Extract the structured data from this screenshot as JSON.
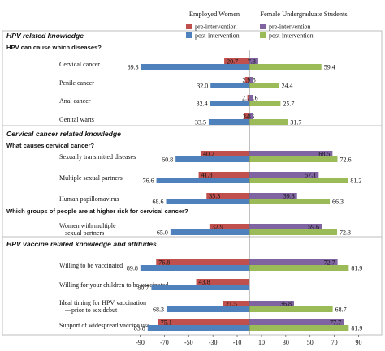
{
  "legend": {
    "group_left": "Employed Women",
    "group_right": "Female Undergraduate Students",
    "pre": "pre-intervention",
    "post": "post-intervention"
  },
  "colors": {
    "emp_pre": "#c0504d",
    "emp_post": "#4f81bd",
    "stu_pre": "#8064a2",
    "stu_post": "#9bbb59"
  },
  "chart_data": {
    "type": "bar",
    "orientation": "horizontal",
    "xlim": [
      -90,
      90
    ],
    "xticks": [
      "-90",
      "-70",
      "-50",
      "-30",
      "-10",
      "10",
      "30",
      "50",
      "70",
      "90"
    ],
    "series_names": [
      "pre-intervention",
      "post-intervention",
      "pre-intervention",
      "post-intervention"
    ],
    "sections": [
      {
        "title": "HPV related knowledge",
        "groups": [
          {
            "question": "HPV can cause which diseases?",
            "items": [
              {
                "label": [
                  "Cervical cancer"
                ],
                "emp_pre": "20.7",
                "emp_post": "89.3",
                "stu_pre": "7.3",
                "stu_post": "59.4"
              },
              {
                "label": [
                  "Penile cancer"
                ],
                "emp_pre": "3.5",
                "emp_post": "32.0",
                "stu_pre": "2.9",
                "stu_post": "24.4"
              },
              {
                "label": [
                  "Anal cancer"
                ],
                "emp_pre": "1.6",
                "emp_post": "32.4",
                "stu_pre": "2.7",
                "stu_post": "25.7"
              },
              {
                "label": [
                  "Genital warts"
                ],
                "emp_pre": "4.5",
                "emp_post": "33.5",
                "stu_pre": "3.3",
                "stu_post": "31.7"
              }
            ]
          }
        ]
      },
      {
        "title": "Cervical cancer related knowledge",
        "groups": [
          {
            "question": "What causes cervical cancer?",
            "items": [
              {
                "label": [
                  "Sexually transmitted diseases"
                ],
                "emp_pre": "40.2",
                "emp_post": "60.8",
                "stu_pre": "68.5",
                "stu_post": "72.6"
              },
              {
                "label": [
                  "Multiple sexual partners"
                ],
                "emp_pre": "41.8",
                "emp_post": "76.6",
                "stu_pre": "57.1",
                "stu_post": "81.2"
              },
              {
                "label": [
                  "Human papillomavirus"
                ],
                "emp_pre": "35.3",
                "emp_post": "68.6",
                "stu_pre": "39.3",
                "stu_post": "66.3"
              }
            ]
          },
          {
            "question": "Which groups of people are at higher risk for cervical cancer?",
            "items": [
              {
                "label": [
                  "Women with multiple",
                  "sexual partners"
                ],
                "emp_pre": "32.9",
                "emp_post": "65.0",
                "stu_pre": "59.6",
                "stu_post": "72.3"
              }
            ]
          }
        ]
      },
      {
        "title": "HPV vaccine related knowledge and attitudes",
        "groups": [
          {
            "question": "",
            "items": [
              {
                "label": [
                  "Willing to be vaccinated"
                ],
                "emp_pre": "76.8",
                "emp_post": "89.8",
                "stu_pre": "72.7",
                "stu_post": "81.9"
              },
              {
                "label": [
                  "Willing for your children to be vaccinated"
                ],
                "emp_pre": "43.8",
                "emp_post": "80.7",
                "stu_pre": "",
                "stu_post": ""
              },
              {
                "label": [
                  "Ideal timing for HPV vaccination",
                  "—prior to sex debut"
                ],
                "emp_pre": "21.5",
                "emp_post": "68.3",
                "stu_pre": "36.8",
                "stu_post": "68.7"
              },
              {
                "label": [
                  "Support of widespread vaccine use"
                ],
                "emp_pre": "75.1",
                "emp_post": "83.8",
                "stu_pre": "77.7",
                "stu_post": "81.9"
              }
            ]
          }
        ]
      }
    ]
  }
}
